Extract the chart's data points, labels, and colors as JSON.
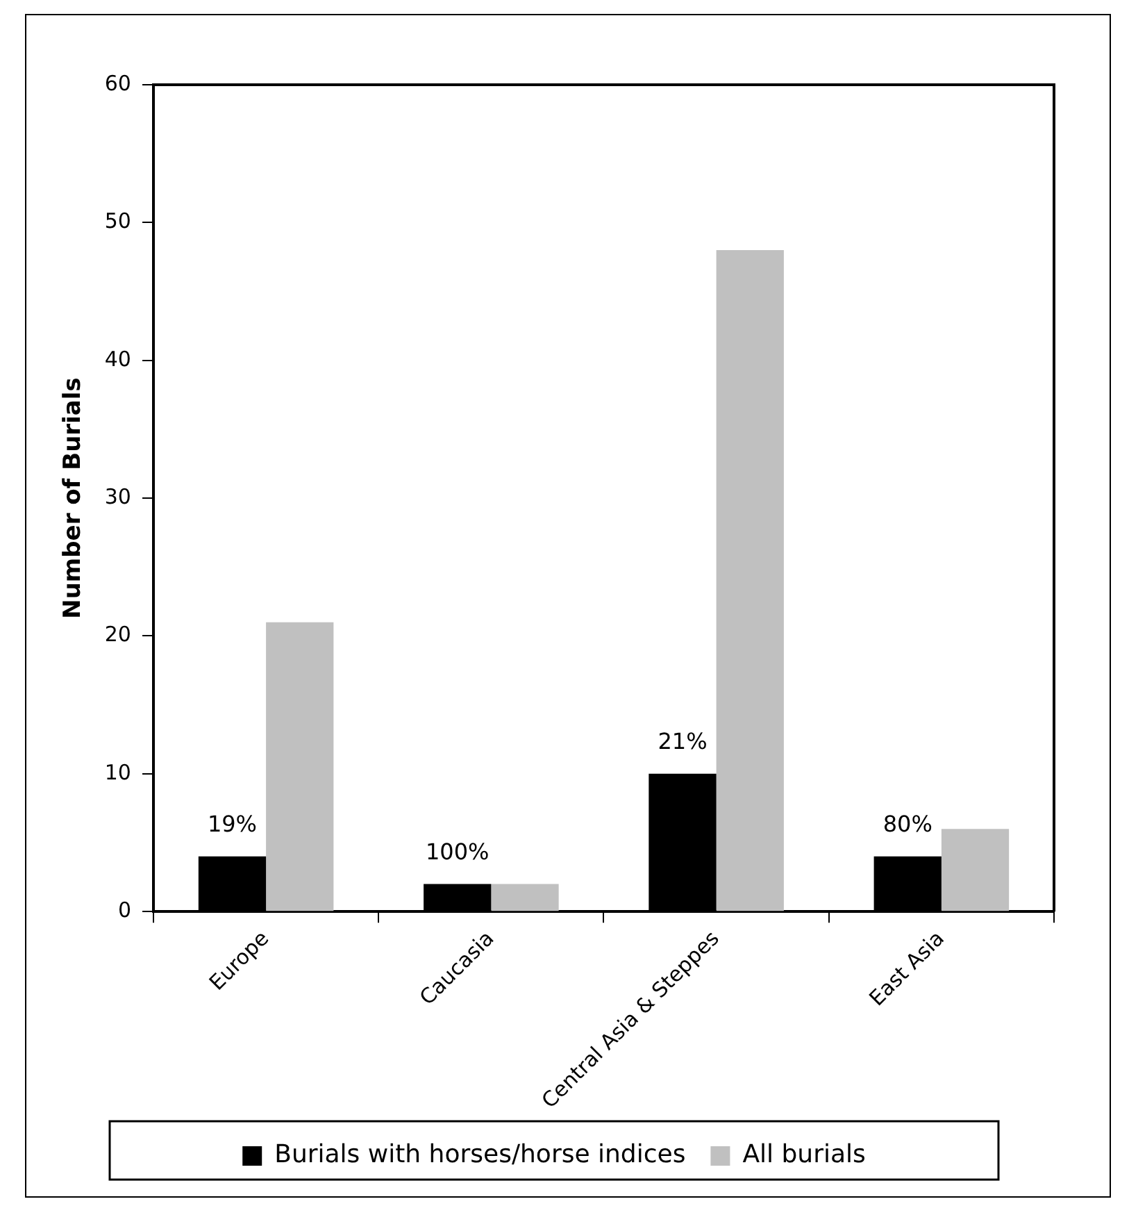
{
  "chart_data": {
    "type": "bar",
    "ylabel": "Number of Burials",
    "categories": [
      "Europe",
      "Caucasia",
      "Central Asia & Steppes",
      "East Asia"
    ],
    "series": [
      {
        "name": "Burials with horses/horse indices",
        "color": "#000000",
        "values": [
          4,
          2,
          10,
          4
        ]
      },
      {
        "name": "All burials",
        "color": "#c0c0c0",
        "values": [
          21,
          2,
          48,
          6
        ]
      }
    ],
    "ylim": [
      0,
      60
    ],
    "yticks": [
      0,
      10,
      20,
      30,
      40,
      50,
      60
    ],
    "grid": false,
    "legend": "bottom",
    "annotations": [
      {
        "text": "19%",
        "x": "Europe",
        "y": 4
      },
      {
        "text": "100%",
        "x": "Caucasia",
        "y": 2
      },
      {
        "text": "21%",
        "x": "Central Asia & Steppes",
        "y": 10
      },
      {
        "text": "80%",
        "x": "East Asia",
        "y": 4
      }
    ]
  }
}
